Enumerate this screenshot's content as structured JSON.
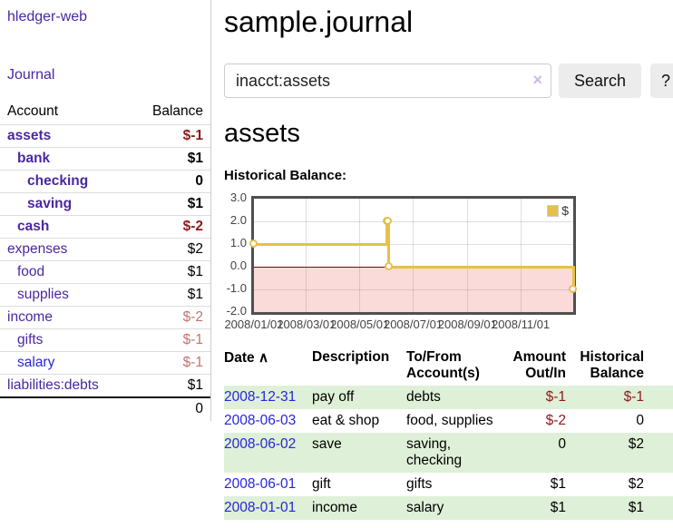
{
  "app": {
    "title": "hledger-web",
    "nav": {
      "journal": "Journal"
    }
  },
  "sidebar": {
    "accounts_table": {
      "headers": {
        "account": "Account",
        "balance": "Balance"
      },
      "rows": [
        {
          "name": "assets",
          "depth": 1,
          "bold": true,
          "balance": "$-1",
          "neg": "strong"
        },
        {
          "name": "bank",
          "depth": 2,
          "bold": true,
          "balance": "$1",
          "neg": "none"
        },
        {
          "name": "checking",
          "depth": 3,
          "bold": true,
          "balance": "0",
          "neg": "none"
        },
        {
          "name": "saving",
          "depth": 3,
          "bold": true,
          "balance": "$1",
          "neg": "none"
        },
        {
          "name": "cash",
          "depth": 2,
          "bold": true,
          "balance": "$-2",
          "neg": "strong"
        },
        {
          "name": "expenses",
          "depth": 1,
          "bold": false,
          "balance": "$2",
          "neg": "none"
        },
        {
          "name": "food",
          "depth": 2,
          "bold": false,
          "balance": "$1",
          "neg": "none"
        },
        {
          "name": "supplies",
          "depth": 2,
          "bold": false,
          "balance": "$1",
          "neg": "none"
        },
        {
          "name": "income",
          "depth": 1,
          "bold": false,
          "balance": "$-2",
          "neg": "soft"
        },
        {
          "name": "gifts",
          "depth": 2,
          "bold": false,
          "balance": "$-1",
          "neg": "soft"
        },
        {
          "name": "salary",
          "depth": 2,
          "bold": false,
          "balance": "$-1",
          "neg": "soft",
          "link_blue": true
        },
        {
          "name": "liabilities:debts",
          "depth": 1,
          "bold": false,
          "balance": "$1",
          "neg": "none"
        }
      ],
      "total": "0"
    }
  },
  "main": {
    "title": "sample.journal",
    "search": {
      "value": "inacct:assets",
      "clear_icon": "×",
      "search_button": "Search",
      "help_button": "?"
    },
    "account_heading": "assets",
    "chart_title": "Historical Balance:"
  },
  "chart_data": {
    "type": "line",
    "title": "Historical Balance:",
    "series": [
      {
        "name": "$",
        "color": "#e7c04a",
        "step": true,
        "points": [
          [
            "2008-01-01",
            1
          ],
          [
            "2008-06-01",
            2
          ],
          [
            "2008-06-02",
            2
          ],
          [
            "2008-06-03",
            0
          ],
          [
            "2008-12-31",
            -1
          ]
        ]
      }
    ],
    "x_range": [
      "2008-01-01",
      "2008-12-31"
    ],
    "ylim": [
      -2,
      3
    ],
    "y_tick_labels": [
      "3.0",
      "2.0",
      "1.0",
      "0.0",
      "-1.0",
      "-2.0"
    ],
    "x_tick_labels": [
      "2008/01/01",
      "2008/03/01",
      "2008/05/01",
      "2008/07/01",
      "2008/09/01",
      "2008/11/01"
    ],
    "grid": true,
    "legend": {
      "label": "$",
      "position": "top-right"
    },
    "negative_region_color": "#fbdada",
    "zero_line_color": "#8b0000"
  },
  "register": {
    "sort_icon": "∧",
    "columns": [
      {
        "label": "Date"
      },
      {
        "label": "Description"
      },
      {
        "label": "To/From Account(s)"
      },
      {
        "label": "Amount Out/In"
      },
      {
        "label": "Historical Balance"
      }
    ],
    "rows": [
      {
        "date": "2008-12-31",
        "description": "pay off",
        "accounts": "debts",
        "amount": "$-1",
        "balance": "$-1"
      },
      {
        "date": "2008-06-03",
        "description": "eat & shop",
        "accounts": "food, supplies",
        "amount": "$-2",
        "balance": "0"
      },
      {
        "date": "2008-06-02",
        "description": "save",
        "accounts": "saving, checking",
        "amount": "0",
        "balance": "$2"
      },
      {
        "date": "2008-06-01",
        "description": "gift",
        "accounts": "gifts",
        "amount": "$1",
        "balance": "$2"
      },
      {
        "date": "2008-01-01",
        "description": "income",
        "accounts": "salary",
        "amount": "$1",
        "balance": "$1"
      }
    ]
  }
}
